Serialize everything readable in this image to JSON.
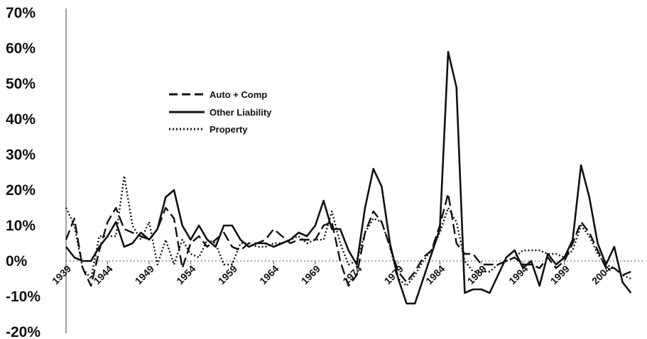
{
  "chart_data": {
    "type": "line",
    "title": "",
    "xlabel": "",
    "ylabel": "",
    "ylim": [
      -20,
      70
    ],
    "xlim": [
      1939,
      2008
    ],
    "y_ticks": [
      "70%",
      "60%",
      "50%",
      "40%",
      "30%",
      "20%",
      "10%",
      "0%",
      "-10%",
      "-20%"
    ],
    "x_ticks": [
      "1939",
      "1944",
      "1949",
      "1954",
      "1959",
      "1964",
      "1969",
      "1974",
      "1979",
      "1984",
      "1989",
      "1994",
      "1999",
      "2004"
    ],
    "grid": false,
    "legend_position": "upper-left",
    "series": [
      {
        "name": "Auto + Comp",
        "style": "dashed",
        "color": "#111111",
        "x": [
          1939,
          1940,
          1941,
          1942,
          1943,
          1944,
          1945,
          1946,
          1947,
          1948,
          1949,
          1950,
          1951,
          1952,
          1953,
          1954,
          1955,
          1956,
          1957,
          1958,
          1959,
          1960,
          1961,
          1962,
          1963,
          1964,
          1965,
          1966,
          1967,
          1968,
          1969,
          1970,
          1971,
          1972,
          1973,
          1974,
          1975,
          1976,
          1977,
          1978,
          1979,
          1980,
          1981,
          1982,
          1983,
          1984,
          1985,
          1986,
          1987,
          1988,
          1989,
          1990,
          1991,
          1992,
          1993,
          1994,
          1995,
          1996,
          1997,
          1998,
          1999,
          2000,
          2001,
          2002,
          2003,
          2004,
          2005,
          2006,
          2007
        ],
        "y": [
          6,
          12,
          -2,
          -7,
          3,
          11,
          15,
          9,
          8,
          7,
          6,
          9,
          15,
          12,
          -2,
          5,
          7,
          4,
          6,
          8,
          4,
          3,
          5,
          5,
          6,
          9,
          7,
          5,
          6,
          6,
          6,
          10,
          11,
          0,
          -7,
          -4,
          8,
          14,
          11,
          4,
          -3,
          -6,
          -3,
          1,
          3,
          10,
          19,
          5,
          2,
          2,
          -1,
          -1,
          -1,
          0,
          1,
          -1,
          -1,
          -2,
          1,
          -2,
          0,
          5,
          11,
          8,
          3,
          -2,
          -2,
          -4,
          -3
        ]
      },
      {
        "name": "Other Liability",
        "style": "solid",
        "color": "#111111",
        "x": [
          1939,
          1940,
          1941,
          1942,
          1943,
          1944,
          1945,
          1946,
          1947,
          1948,
          1949,
          1950,
          1951,
          1952,
          1953,
          1954,
          1955,
          1956,
          1957,
          1958,
          1959,
          1960,
          1961,
          1962,
          1963,
          1964,
          1965,
          1966,
          1967,
          1968,
          1969,
          1970,
          1971,
          1972,
          1973,
          1974,
          1975,
          1976,
          1977,
          1978,
          1979,
          1980,
          1981,
          1982,
          1983,
          1984,
          1985,
          1986,
          1987,
          1988,
          1989,
          1990,
          1991,
          1992,
          1993,
          1994,
          1995,
          1996,
          1997,
          1998,
          1999,
          2000,
          2001,
          2002,
          2003,
          2004,
          2005,
          2006,
          2007
        ],
        "y": [
          4,
          1,
          0,
          0,
          4,
          7,
          11,
          4,
          5,
          8,
          6,
          9,
          18,
          20,
          10,
          6,
          10,
          6,
          4,
          10,
          10,
          6,
          4,
          5,
          5,
          4,
          5,
          6,
          8,
          7,
          10,
          17,
          9,
          9,
          3,
          -1,
          15,
          26,
          21,
          5,
          -5,
          -12,
          -12,
          -5,
          2,
          9,
          59,
          49,
          -9,
          -8,
          -8,
          -9,
          -4,
          1,
          3,
          -2,
          0,
          -7,
          2,
          -1,
          1,
          6,
          27,
          18,
          5,
          -1,
          4,
          -6,
          -9
        ]
      },
      {
        "name": "Property",
        "style": "dotted",
        "color": "#111111",
        "x": [
          1939,
          1940,
          1941,
          1942,
          1943,
          1944,
          1945,
          1946,
          1947,
          1948,
          1949,
          1950,
          1951,
          1952,
          1953,
          1954,
          1955,
          1956,
          1957,
          1958,
          1959,
          1960,
          1961,
          1962,
          1963,
          1964,
          1965,
          1966,
          1967,
          1968,
          1969,
          1970,
          1971,
          1972,
          1973,
          1974,
          1975,
          1976,
          1977,
          1978,
          1979,
          1980,
          1981,
          1982,
          1983,
          1984,
          1985,
          1986,
          1987,
          1988,
          1989,
          1990,
          1991,
          1992,
          1993,
          1994,
          1995,
          1996,
          1997,
          1998,
          1999,
          2000,
          2001,
          2002,
          2003,
          2004,
          2005,
          2006,
          2007
        ],
        "y": [
          15,
          10,
          -2,
          -5,
          7,
          7,
          7,
          24,
          10,
          6,
          11,
          -1,
          6,
          -1,
          6,
          2,
          1,
          6,
          5,
          -1,
          -1,
          5,
          5,
          4,
          4,
          5,
          5,
          6,
          7,
          5,
          6,
          6,
          14,
          5,
          -1,
          0,
          8,
          12,
          11,
          4,
          -5,
          -7,
          -4,
          0,
          3,
          8,
          15,
          11,
          0,
          -3,
          -3,
          -3,
          -1,
          0,
          1,
          3,
          3,
          3,
          2,
          2,
          1,
          3,
          10,
          7,
          2,
          -1,
          -2,
          -4,
          -5
        ]
      }
    ]
  }
}
